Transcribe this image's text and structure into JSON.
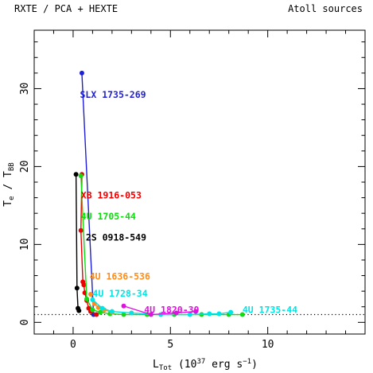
{
  "chart_data": {
    "type": "scatter",
    "header_left": "RXTE / PCA + HEXTE",
    "header_right": "Atoll sources",
    "xlabel": {
      "main": "L",
      "sub": "Tot",
      "rest": " (10",
      "exp1": "37",
      "mid": " erg s",
      "exp2": "−1",
      "end": ")"
    },
    "ylabel": {
      "a": "T",
      "a_sub": "e",
      "sep": " / ",
      "b": "T",
      "b_sub": "BB"
    },
    "xlim": [
      -2,
      15
    ],
    "ylim": [
      -1.5,
      37.5
    ],
    "xticks": [
      0,
      5,
      10
    ],
    "yticks": [
      0,
      10,
      20,
      30
    ],
    "reference_line": {
      "y": 1,
      "style": "dotted"
    },
    "series": [
      {
        "name": "SLX 1735-269",
        "color": "#1f1fd6",
        "points": [
          [
            0.45,
            32.0
          ],
          [
            1.05,
            1.0
          ]
        ],
        "label_at": [
          0.35,
          28.8
        ]
      },
      {
        "name": "XB 1916-053",
        "color": "#ee0000",
        "points": [
          [
            0.45,
            19.0
          ],
          [
            0.4,
            11.8
          ],
          [
            0.5,
            5.2
          ],
          [
            0.55,
            4.8
          ],
          [
            0.6,
            3.8
          ],
          [
            0.7,
            2.8
          ],
          [
            0.8,
            1.8
          ],
          [
            0.9,
            1.4
          ],
          [
            1.2,
            1.0
          ]
        ],
        "label_at": [
          0.4,
          15.9
        ]
      },
      {
        "name": "4U 1705-44",
        "color": "#10dd10",
        "points": [
          [
            0.4,
            18.8
          ],
          [
            0.7,
            3.0
          ],
          [
            1.0,
            1.6
          ],
          [
            1.4,
            1.3
          ],
          [
            1.9,
            1.1
          ],
          [
            2.6,
            1.0
          ],
          [
            3.8,
            1.0
          ],
          [
            5.2,
            1.0
          ],
          [
            6.6,
            1.0
          ],
          [
            8.0,
            1.0
          ],
          [
            8.7,
            1.0
          ]
        ],
        "label_at": [
          0.4,
          13.2
        ]
      },
      {
        "name": "2S 0918-549",
        "color": "#000000",
        "points": [
          [
            0.15,
            19.0
          ],
          [
            0.2,
            4.4
          ],
          [
            0.25,
            1.8
          ],
          [
            0.3,
            1.5
          ]
        ],
        "label_at": [
          0.65,
          10.5
        ]
      },
      {
        "name": "4U 1636-536",
        "color": "#ff8c1a",
        "points": [
          [
            0.9,
            3.6
          ],
          [
            1.1,
            2.4
          ],
          [
            1.3,
            1.9
          ],
          [
            1.6,
            1.6
          ],
          [
            2.0,
            1.3
          ]
        ],
        "label_at": [
          0.85,
          5.5
        ]
      },
      {
        "name": "4U 1728-34",
        "color": "#00e5e5",
        "points": [
          [
            1.0,
            2.9
          ],
          [
            1.5,
            1.8
          ],
          [
            2.0,
            1.4
          ],
          [
            3.0,
            1.2
          ],
          [
            4.5,
            1.0
          ],
          [
            6.0,
            1.0
          ],
          [
            7.0,
            1.1
          ],
          [
            7.5,
            1.1
          ],
          [
            8.1,
            1.3
          ]
        ],
        "label_at": [
          1.0,
          3.3
        ]
      },
      {
        "name": "4U 1820-30",
        "color": "#e010e0",
        "points": [
          [
            2.6,
            2.1
          ],
          [
            4.0,
            1.0
          ],
          [
            5.3,
            1.2
          ],
          [
            6.3,
            1.4
          ]
        ],
        "label_at": [
          3.65,
          1.2
        ]
      },
      {
        "name": "4U 1735-44",
        "color": "#00e5e5",
        "points": [],
        "label_at": [
          8.7,
          1.2
        ]
      }
    ]
  }
}
